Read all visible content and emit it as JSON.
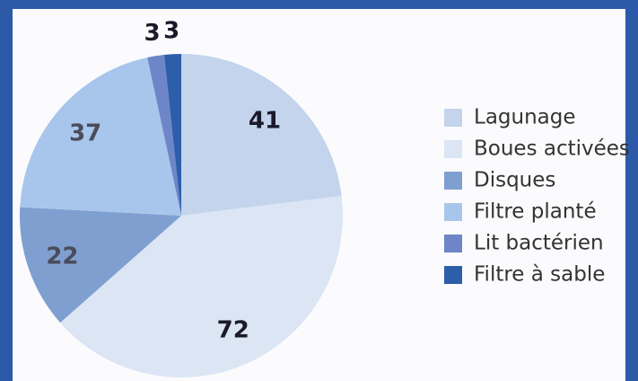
{
  "chart_data": {
    "type": "pie",
    "categories": [
      "Lagunage",
      "Boues activées",
      "Disques",
      "Filtre planté",
      "Lit bactérien",
      "Filtre à sable"
    ],
    "values": [
      41,
      72,
      22,
      37,
      3,
      3
    ],
    "colors": [
      "#c3d4ec",
      "#dbe5f3",
      "#7f9fd1",
      "#a8c6eb",
      "#6e86c9",
      "#2d5ea9"
    ],
    "legend": "right"
  }
}
